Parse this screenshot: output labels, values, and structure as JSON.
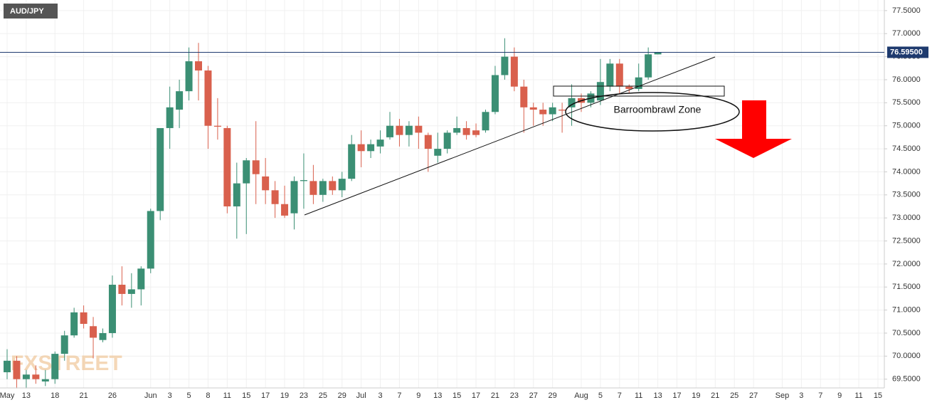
{
  "chart_data": {
    "type": "candlestick",
    "symbol": "AUD/JPY",
    "watermark": "FXSTREET",
    "annotation": "Barroombrawl Zone",
    "up_color": "#3b8f74",
    "down_color": "#d9604d",
    "grid": true,
    "ylim": [
      69.31,
      77.73
    ],
    "yticks": [
      {
        "value": 69.5,
        "label": "69.5000"
      },
      {
        "value": 70,
        "label": "70.0000"
      },
      {
        "value": 70.5,
        "label": "70.5000"
      },
      {
        "value": 71,
        "label": "71.0000"
      },
      {
        "value": 71.5,
        "label": "71.5000"
      },
      {
        "value": 72,
        "label": "72.0000"
      },
      {
        "value": 72.5,
        "label": "72.5000"
      },
      {
        "value": 73,
        "label": "73.0000"
      },
      {
        "value": 73.5,
        "label": "73.5000"
      },
      {
        "value": 74,
        "label": "74.0000"
      },
      {
        "value": 74.5,
        "label": "74.5000"
      },
      {
        "value": 75,
        "label": "75.0000"
      },
      {
        "value": 75.5,
        "label": "75.5000"
      },
      {
        "value": 76,
        "label": "76.0000"
      },
      {
        "value": 76.5,
        "label": "76.5000"
      },
      {
        "value": 77,
        "label": "77.0000"
      },
      {
        "value": 77.5,
        "label": "77.5000"
      }
    ],
    "current_price": {
      "value": 76.595,
      "label": "76.59500"
    },
    "categories": [
      "May",
      null,
      "13",
      null,
      null,
      "18",
      null,
      null,
      "21",
      null,
      null,
      "26",
      null,
      null,
      null,
      "Jun",
      null,
      "3",
      null,
      "5",
      null,
      "8",
      null,
      "11",
      null,
      "15",
      null,
      "17",
      null,
      "19",
      null,
      "23",
      null,
      "25",
      null,
      "29",
      null,
      "Jul",
      null,
      "3",
      null,
      "7",
      null,
      "9",
      null,
      "13",
      null,
      "15",
      null,
      "17",
      null,
      "21",
      null,
      "23",
      null,
      "27",
      null,
      "29",
      null,
      null,
      "Aug",
      null,
      "5",
      null,
      "7",
      null,
      "11",
      null,
      "13",
      null,
      "17",
      null,
      "19",
      null,
      "21",
      null,
      "25",
      null,
      "27",
      null,
      null,
      "Sep",
      null,
      "3",
      null,
      "7",
      null,
      "9",
      null,
      "11",
      null,
      "15"
    ],
    "open": [
      69.65,
      69.9,
      69.5,
      69.6,
      69.45,
      69.5,
      70.05,
      70.45,
      70.95,
      70.65,
      70.35,
      70.5,
      71.55,
      71.35,
      71.45,
      71.9,
      73.15,
      74.95,
      75.35,
      75.75,
      76.4,
      76.2,
      75.0,
      74.95,
      73.25,
      73.75,
      74.25,
      73.9,
      73.6,
      73.3,
      73.1,
      73.8,
      73.8,
      73.5,
      73.8,
      73.6,
      73.85,
      74.6,
      74.45,
      74.55,
      74.75,
      75.0,
      74.8,
      75.0,
      74.8,
      74.35,
      74.5,
      74.85,
      74.95,
      74.9,
      74.9,
      75.3,
      76.1,
      76.5,
      75.85,
      75.4,
      75.35,
      75.25,
      75.35,
      75.4,
      75.6,
      75.5,
      75.55,
      75.85,
      76.35,
      75.85,
      75.8,
      76.05,
      76.55,
      null,
      null,
      null,
      null,
      null,
      null,
      null,
      null,
      null,
      null,
      null,
      null,
      null,
      null,
      null,
      null,
      null,
      null,
      null,
      null,
      null,
      null,
      null
    ],
    "high": [
      70.15,
      70.0,
      69.7,
      69.8,
      69.7,
      70.1,
      70.55,
      71.05,
      71.1,
      70.85,
      70.6,
      71.75,
      71.95,
      71.8,
      71.95,
      73.2,
      74.95,
      75.85,
      76.0,
      76.7,
      76.8,
      76.3,
      75.6,
      75.0,
      74.2,
      74.3,
      75.1,
      74.3,
      73.8,
      73.7,
      73.9,
      74.4,
      74.15,
      73.85,
      73.9,
      74.0,
      74.8,
      74.9,
      74.7,
      74.9,
      75.3,
      75.15,
      75.1,
      75.2,
      74.85,
      74.85,
      74.9,
      75.2,
      75.1,
      75.05,
      75.35,
      76.3,
      76.9,
      76.7,
      76.0,
      75.5,
      75.5,
      75.5,
      75.5,
      75.9,
      75.7,
      75.75,
      76.45,
      76.45,
      76.45,
      75.9,
      76.35,
      76.7,
      76.6,
      null,
      null,
      null,
      null,
      null,
      null,
      null,
      null,
      null,
      null,
      null,
      null,
      null,
      null,
      null,
      null,
      null,
      null,
      null,
      null,
      null,
      null,
      null
    ],
    "low": [
      69.5,
      69.3,
      69.3,
      69.4,
      69.35,
      69.4,
      69.9,
      70.4,
      70.6,
      69.95,
      70.3,
      70.4,
      71.1,
      71.05,
      71.1,
      71.8,
      72.95,
      74.5,
      74.95,
      75.55,
      75.55,
      74.5,
      74.7,
      73.1,
      72.55,
      72.65,
      73.3,
      73.3,
      73.0,
      73.0,
      72.75,
      73.2,
      73.3,
      73.35,
      73.5,
      73.45,
      73.8,
      74.1,
      74.3,
      74.4,
      74.7,
      74.55,
      74.55,
      74.5,
      74.0,
      74.2,
      74.4,
      74.8,
      74.7,
      74.75,
      74.85,
      75.25,
      76.0,
      75.75,
      74.85,
      75.0,
      75.0,
      75.1,
      74.85,
      75.0,
      75.3,
      75.4,
      75.45,
      75.75,
      75.7,
      75.7,
      75.75,
      76.0,
      76.55,
      null,
      null,
      null,
      null,
      null,
      null,
      null,
      null,
      null,
      null,
      null,
      null,
      null,
      null,
      null,
      null,
      null,
      null,
      null,
      null,
      null,
      null,
      null
    ],
    "close": [
      69.9,
      69.5,
      69.6,
      69.5,
      69.5,
      70.05,
      70.45,
      70.95,
      70.7,
      70.4,
      70.5,
      71.55,
      71.35,
      71.45,
      71.9,
      73.15,
      74.95,
      75.4,
      75.75,
      76.4,
      76.2,
      75.0,
      74.98,
      73.25,
      73.75,
      74.25,
      73.95,
      73.6,
      73.3,
      73.05,
      73.8,
      73.82,
      73.5,
      73.8,
      73.6,
      73.85,
      74.6,
      74.45,
      74.6,
      74.7,
      75.0,
      74.8,
      75.0,
      74.85,
      74.5,
      74.5,
      74.85,
      74.95,
      74.8,
      74.8,
      75.3,
      76.1,
      76.5,
      75.85,
      75.4,
      75.35,
      75.25,
      75.4,
      75.33,
      75.6,
      75.5,
      75.7,
      75.95,
      76.35,
      75.85,
      75.8,
      76.05,
      76.55,
      76.595,
      null,
      null,
      null,
      null,
      null,
      null,
      null,
      null,
      null,
      null,
      null,
      null,
      null,
      null,
      null,
      null,
      null,
      null,
      null,
      null,
      null,
      null,
      null
    ]
  }
}
